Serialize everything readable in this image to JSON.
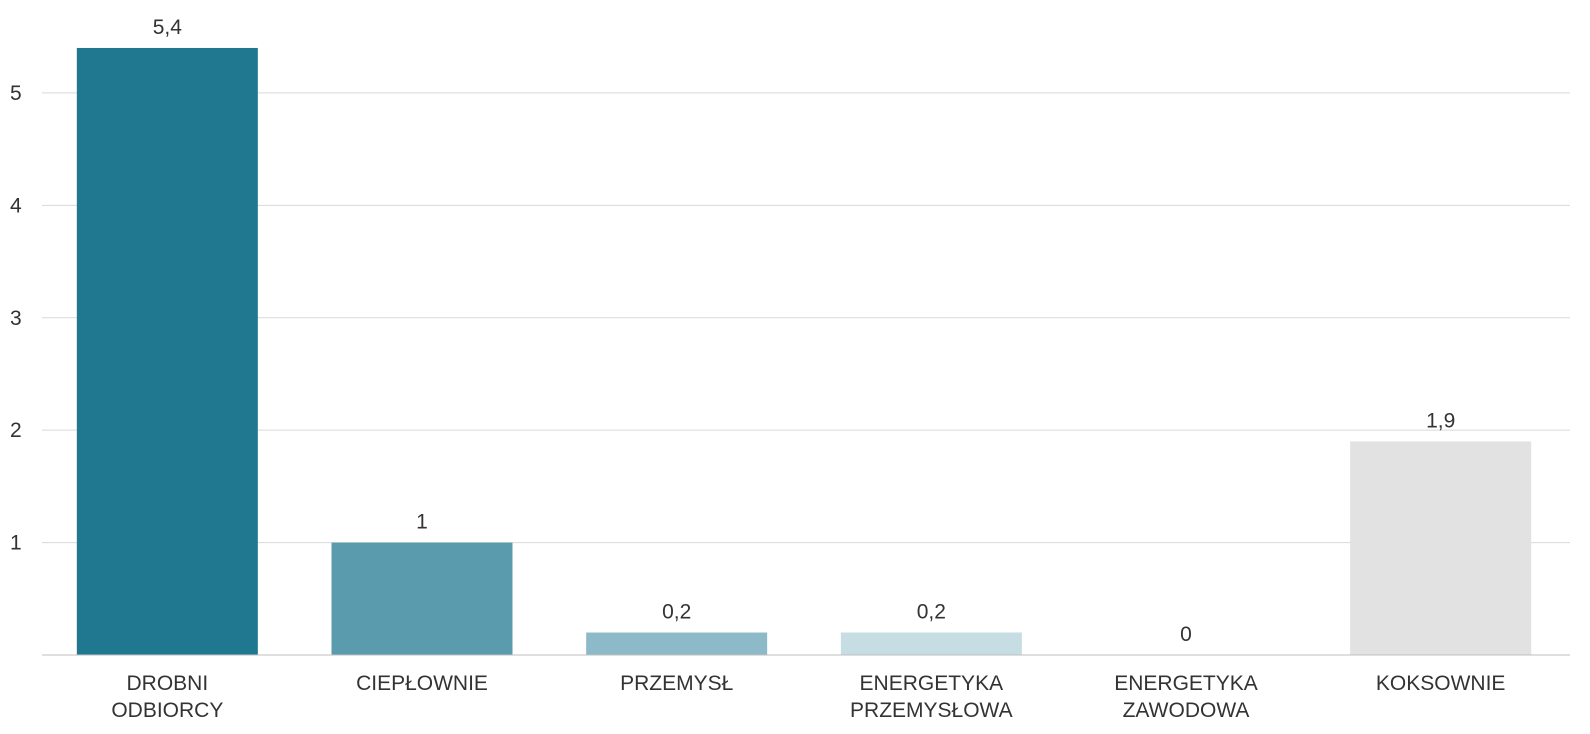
{
  "chart_data": {
    "type": "bar",
    "categories": [
      [
        "DROBNI",
        "ODBIORCY"
      ],
      [
        "CIEPŁOWNIE"
      ],
      [
        "PRZEMYSŁ"
      ],
      [
        "ENERGETYKA",
        "PRZEMYSŁOWA"
      ],
      [
        "ENERGETYKA",
        "ZAWODOWA"
      ],
      [
        "KOKSOWNIE"
      ]
    ],
    "values": [
      5.4,
      1,
      0.2,
      0.2,
      0,
      1.9
    ],
    "value_labels": [
      "5,4",
      "1",
      "0,2",
      "0,2",
      "0",
      "1,9"
    ],
    "colors": [
      "#1f7890",
      "#5a9cae",
      "#8dbac8",
      "#c5dde3",
      "#e8e8e8",
      "#e2e2e2"
    ],
    "yticks": [
      1,
      2,
      3,
      4,
      5
    ],
    "ylim": [
      0,
      5.8
    ],
    "grid": true,
    "legend": "none"
  }
}
